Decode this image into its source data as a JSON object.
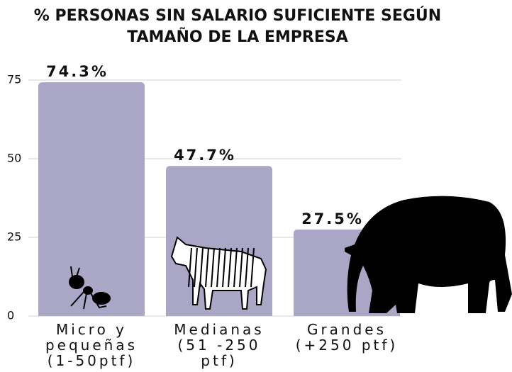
{
  "chart_data": {
    "type": "bar",
    "title": "% PERSONAS SIN SALARIO SUFICIENTE SEGÚN TAMAÑO DE LA EMPRESA",
    "categories": [
      "Micro y pequeñas (1-50ptf)",
      "Medianas (51 -250 ptf)",
      "Grandes (+250 ptf)"
    ],
    "values": [
      74.3,
      47.7,
      27.5
    ],
    "value_labels": [
      "74.3%",
      "47.7%",
      "27.5%"
    ],
    "color": "#a9a6c6",
    "ylim": [
      0,
      75
    ],
    "yticks": [
      0,
      25,
      50,
      75
    ],
    "grid": true
  }
}
